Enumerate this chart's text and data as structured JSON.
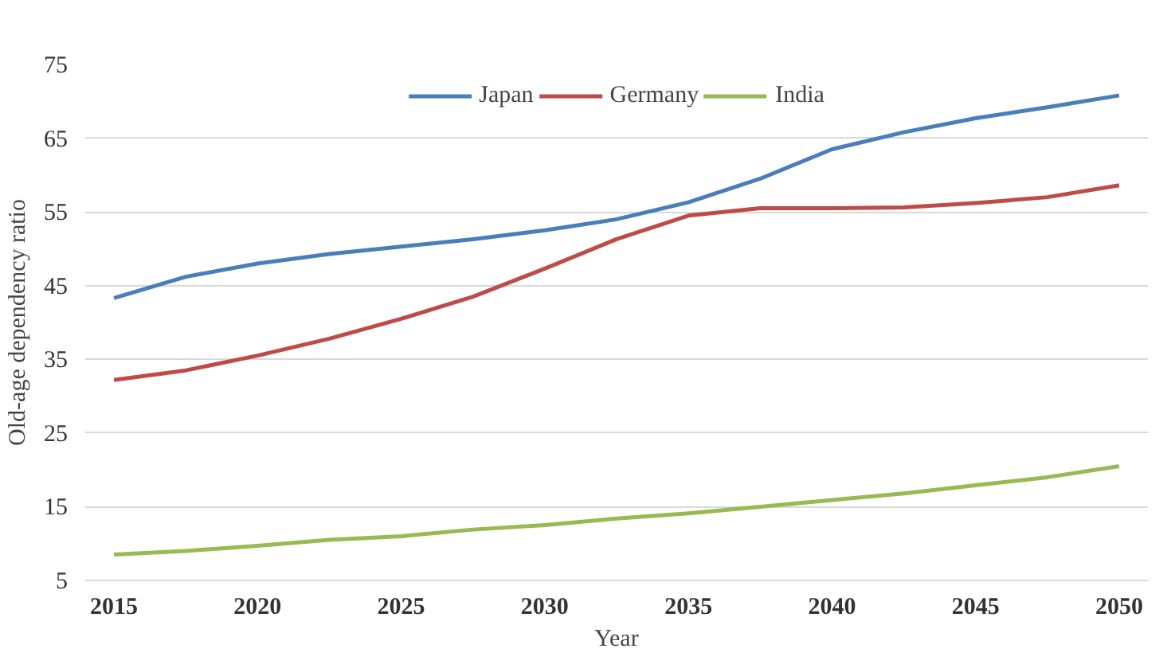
{
  "chart_data": {
    "type": "line",
    "xlabel": "Year",
    "ylabel": "Old-age dependency ratio",
    "x": [
      2015,
      2017.5,
      2020,
      2022.5,
      2025,
      2027.5,
      2030,
      2032.5,
      2035,
      2037.5,
      2040,
      2042.5,
      2045,
      2047.5,
      2050
    ],
    "series": [
      {
        "name": "Japan",
        "color": "#4a7ebb",
        "values": [
          43.3,
          46.2,
          48,
          49.3,
          50.3,
          51.3,
          52.5,
          54,
          56.3,
          59.5,
          63.5,
          65.8,
          67.7,
          69.2,
          70.8
        ]
      },
      {
        "name": "Germany",
        "color": "#be4b48",
        "values": [
          32.2,
          33.5,
          35.5,
          37.8,
          40.5,
          43.5,
          47.3,
          51.3,
          54.5,
          55.5,
          55.5,
          55.6,
          56.2,
          57,
          58.6
        ]
      },
      {
        "name": "India",
        "color": "#98b954",
        "values": [
          8.5,
          9.0,
          9.7,
          10.5,
          11.0,
          11.9,
          12.5,
          13.4,
          14.1,
          15.0,
          15.9,
          16.8,
          17.9,
          19.0,
          20.5
        ]
      }
    ],
    "xlim": [
      2014,
      2051
    ],
    "ylim": [
      5,
      75
    ],
    "xticks": [
      2015,
      2020,
      2025,
      2030,
      2035,
      2040,
      2045,
      2050
    ],
    "yticks": [
      5,
      15,
      25,
      35,
      45,
      55,
      65,
      75
    ],
    "grid": "y",
    "legend": "top",
    "marker": "none",
    "line_style": "solid"
  }
}
